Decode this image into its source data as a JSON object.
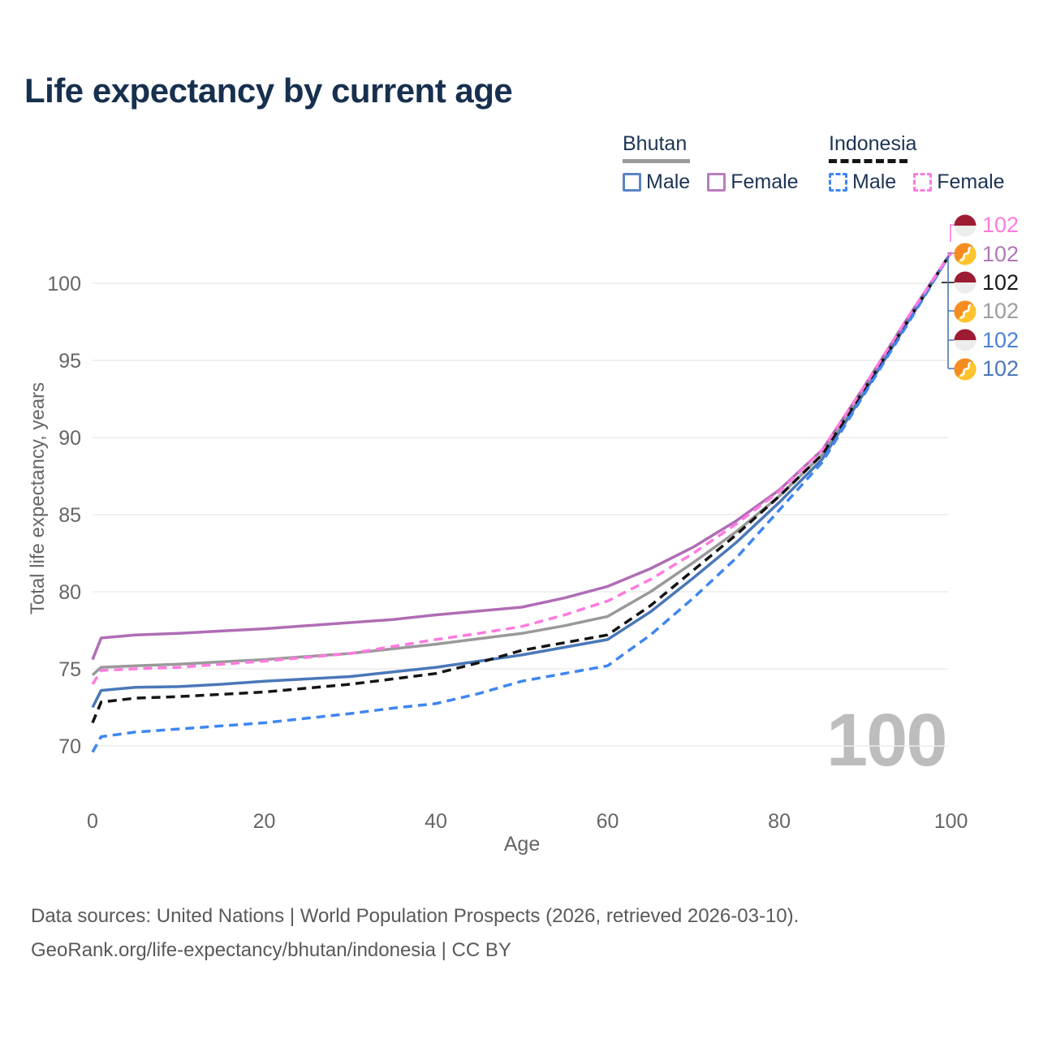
{
  "title": "Life expectancy by current age",
  "legend": {
    "bhutan": {
      "label": "Bhutan",
      "male": "Male",
      "female": "Female"
    },
    "indonesia": {
      "label": "Indonesia",
      "male": "Male",
      "female": "Female"
    }
  },
  "axes": {
    "y_label": "Total life expectancy, years",
    "x_label": "Age",
    "y_ticks": [
      70,
      75,
      80,
      85,
      90,
      95,
      100
    ],
    "x_ticks": [
      0,
      20,
      40,
      60,
      80,
      100
    ]
  },
  "watermark": "100",
  "end_labels": [
    {
      "flag": "indonesia",
      "value": "102",
      "color": "#ff7ade"
    },
    {
      "flag": "bhutan",
      "value": "102",
      "color": "#b077b8"
    },
    {
      "flag": "indonesia",
      "value": "102",
      "color": "#1a1a1a"
    },
    {
      "flag": "bhutan",
      "value": "102",
      "color": "#9e9e9e"
    },
    {
      "flag": "indonesia",
      "value": "102",
      "color": "#4b82d6"
    },
    {
      "flag": "bhutan",
      "value": "102",
      "color": "#4a77b8"
    }
  ],
  "footer": {
    "line1": "Data sources: United Nations | World Population Prospects (2026, retrieved 2026-03-10).",
    "line2": "GeoRank.org/life-expectancy/bhutan/indonesia | CC BY"
  },
  "chart_data": {
    "type": "line",
    "title": "Life expectancy by current age",
    "xlabel": "Age",
    "ylabel": "Total life expectancy, years",
    "xlim": [
      0,
      100
    ],
    "ylim": [
      67,
      103
    ],
    "grid": "horizontal",
    "x": [
      0,
      1,
      5,
      10,
      15,
      20,
      25,
      30,
      35,
      40,
      45,
      50,
      55,
      60,
      65,
      70,
      75,
      80,
      85,
      90,
      95,
      100
    ],
    "series": [
      {
        "name": "Bhutan Both sexes",
        "country": "Bhutan",
        "sex": "both",
        "color": "#999999",
        "dash": "solid",
        "values": [
          74.6,
          75.1,
          75.2,
          75.3,
          75.45,
          75.6,
          75.8,
          76.0,
          76.3,
          76.6,
          76.95,
          77.3,
          77.8,
          78.4,
          80.0,
          81.9,
          83.9,
          86.2,
          88.9,
          93.2,
          97.6,
          102
        ]
      },
      {
        "name": "Bhutan Female",
        "country": "Bhutan",
        "sex": "female",
        "color": "#b06db4",
        "dash": "solid",
        "values": [
          75.6,
          77.0,
          77.2,
          77.3,
          77.45,
          77.6,
          77.8,
          78.0,
          78.2,
          78.5,
          78.75,
          79.0,
          79.6,
          80.35,
          81.5,
          82.9,
          84.6,
          86.6,
          89.2,
          93.4,
          97.8,
          102
        ]
      },
      {
        "name": "Bhutan Male",
        "country": "Bhutan",
        "sex": "male",
        "color": "#4a77b8",
        "dash": "solid",
        "values": [
          72.5,
          73.6,
          73.8,
          73.85,
          74.0,
          74.2,
          74.35,
          74.5,
          74.8,
          75.1,
          75.5,
          75.9,
          76.4,
          76.9,
          78.7,
          80.9,
          83.2,
          85.8,
          88.6,
          93.0,
          97.5,
          102
        ]
      },
      {
        "name": "Indonesia Both sexes",
        "country": "Indonesia",
        "sex": "both",
        "color": "#141414",
        "dash": "dashed",
        "values": [
          71.5,
          72.85,
          73.1,
          73.2,
          73.35,
          73.5,
          73.75,
          74.0,
          74.35,
          74.7,
          75.4,
          76.2,
          76.7,
          77.2,
          79.1,
          81.4,
          83.7,
          86.2,
          88.9,
          93.2,
          97.6,
          102
        ]
      },
      {
        "name": "Indonesia Male",
        "country": "Indonesia",
        "sex": "male",
        "color": "#3f86f0",
        "dash": "dashed",
        "values": [
          69.6,
          70.6,
          70.9,
          71.1,
          71.3,
          71.5,
          71.8,
          72.1,
          72.45,
          72.75,
          73.4,
          74.2,
          74.7,
          75.2,
          77.2,
          79.6,
          82.2,
          85.3,
          88.4,
          92.9,
          97.4,
          102
        ]
      },
      {
        "name": "Indonesia Female",
        "country": "Indonesia",
        "sex": "female",
        "color": "#ff7ade",
        "dash": "dashed",
        "values": [
          74.0,
          74.9,
          75.0,
          75.1,
          75.3,
          75.5,
          75.75,
          76.0,
          76.45,
          76.9,
          77.3,
          77.75,
          78.5,
          79.4,
          80.8,
          82.5,
          84.4,
          86.5,
          89.2,
          93.4,
          97.8,
          102
        ]
      }
    ],
    "end_value_labels": [
      102,
      102,
      102,
      102,
      102,
      102
    ]
  }
}
